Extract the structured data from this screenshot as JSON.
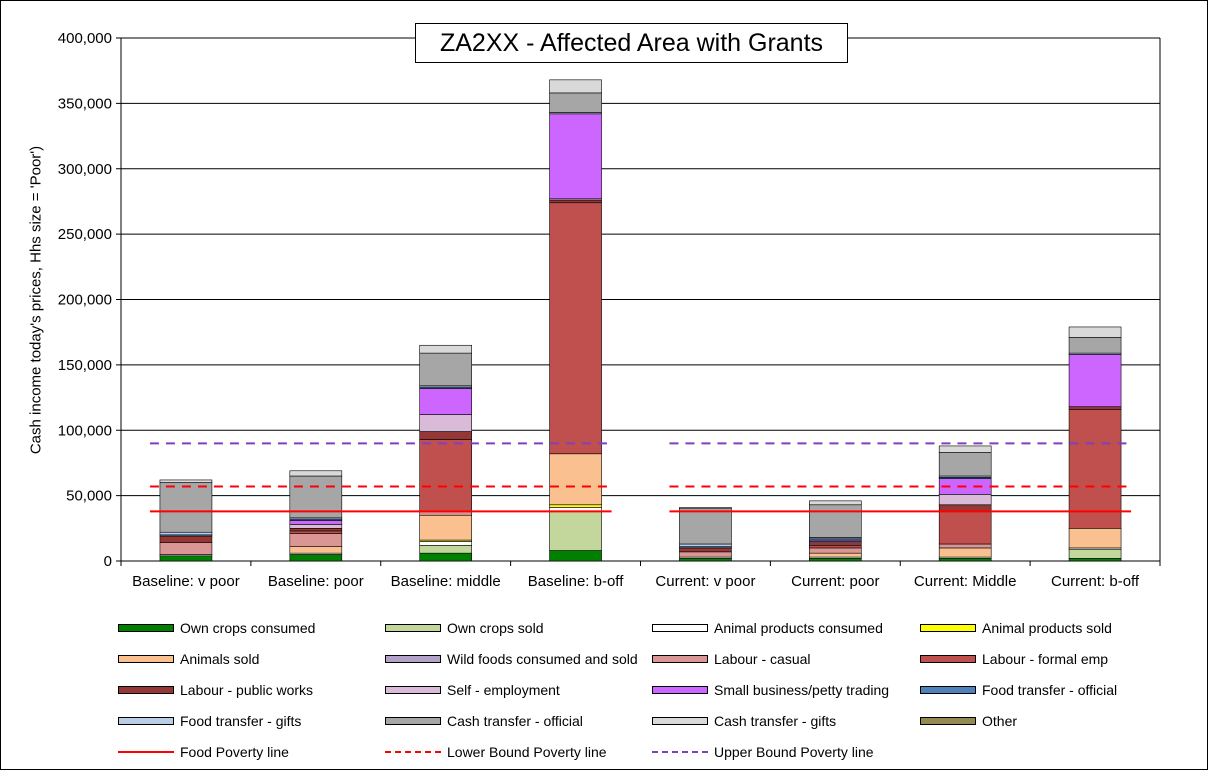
{
  "chart_data": {
    "type": "bar",
    "stacked": true,
    "title": "ZA2XX - Affected Area with Grants",
    "xlabel": "",
    "ylabel": "Cash income today's prices, Hhs size = 'Poor')",
    "ylim": [
      0,
      400000
    ],
    "yticks": [
      "0",
      "50,000",
      "100,000",
      "150,000",
      "200,000",
      "250,000",
      "300,000",
      "350,000",
      "400,000"
    ],
    "grid": true,
    "legend_position": "bottom",
    "categories": [
      "Baseline: v poor",
      "Baseline: poor",
      "Baseline: middle",
      "Baseline: b-off",
      "Current: v poor",
      "Current: poor",
      "Current: Middle",
      "Current: b-off"
    ],
    "series": [
      {
        "name": "Own crops consumed",
        "color": "#008000",
        "values": [
          4000,
          5000,
          6000,
          8000,
          2000,
          2000,
          2000,
          2000
        ]
      },
      {
        "name": "Own crops sold",
        "color": "#c3d69b",
        "values": [
          0,
          0,
          6000,
          30000,
          0,
          0,
          0,
          7000
        ]
      },
      {
        "name": "Animal products consumed",
        "color": "#ffffff",
        "values": [
          1000,
          1000,
          3000,
          3000,
          1000,
          1000,
          1000,
          1000
        ]
      },
      {
        "name": "Animal products sold",
        "color": "#ffff00",
        "values": [
          0,
          0,
          1000,
          2000,
          0,
          0,
          0,
          0
        ]
      },
      {
        "name": "Animals sold",
        "color": "#fac090",
        "values": [
          0,
          5000,
          19000,
          39000,
          0,
          3000,
          7000,
          15000
        ]
      },
      {
        "name": "Wild foods consumed and sold",
        "color": "#b3a2c7",
        "values": [
          0,
          0,
          0,
          0,
          0,
          0,
          0,
          0
        ]
      },
      {
        "name": "Labour - casual",
        "color": "#da9694",
        "values": [
          9000,
          10000,
          3000,
          0,
          4000,
          4000,
          3000,
          0
        ]
      },
      {
        "name": "Labour - formal emp",
        "color": "#c0504d",
        "values": [
          0,
          2000,
          55000,
          192000,
          0,
          2000,
          25000,
          91000
        ]
      },
      {
        "name": "Labour - public works",
        "color": "#953735",
        "values": [
          5000,
          2000,
          6000,
          2000,
          3000,
          2000,
          5000,
          2000
        ]
      },
      {
        "name": "Self - employment",
        "color": "#d9bbd9",
        "values": [
          0,
          3000,
          13000,
          1000,
          0,
          1000,
          8000,
          0
        ]
      },
      {
        "name": "Small business/petty trading",
        "color": "#cc66ff",
        "values": [
          0,
          3000,
          20000,
          65000,
          0,
          1000,
          12000,
          40000
        ]
      },
      {
        "name": "Food transfer - official",
        "color": "#4f81bd",
        "values": [
          1000,
          1000,
          1000,
          0,
          1000,
          1000,
          1000,
          0
        ]
      },
      {
        "name": "Food transfer - gifts",
        "color": "#b9cde5",
        "values": [
          2000,
          1000,
          1000,
          1000,
          2000,
          1000,
          1000,
          1000
        ]
      },
      {
        "name": "Cash transfer - official",
        "color": "#a6a6a6",
        "values": [
          38000,
          32000,
          25000,
          15000,
          27000,
          25000,
          18000,
          12000
        ]
      },
      {
        "name": "Cash transfer - gifts",
        "color": "#d9d9d9",
        "values": [
          2000,
          4000,
          6000,
          10000,
          1000,
          3000,
          5000,
          8000
        ]
      },
      {
        "name": "Other",
        "color": "#938953",
        "values": [
          0,
          0,
          0,
          0,
          0,
          0,
          0,
          0
        ]
      }
    ],
    "poverty_lines": [
      {
        "name": "Food Poverty line",
        "color": "#ff0000",
        "style": "solid",
        "value": 38000
      },
      {
        "name": "Lower Bound Poverty line",
        "color": "#ff0000",
        "style": "dashed",
        "value": 57000
      },
      {
        "name": "Upper Bound Poverty line",
        "color": "#7f3fbf",
        "style": "dashed",
        "value": 90000
      }
    ]
  }
}
